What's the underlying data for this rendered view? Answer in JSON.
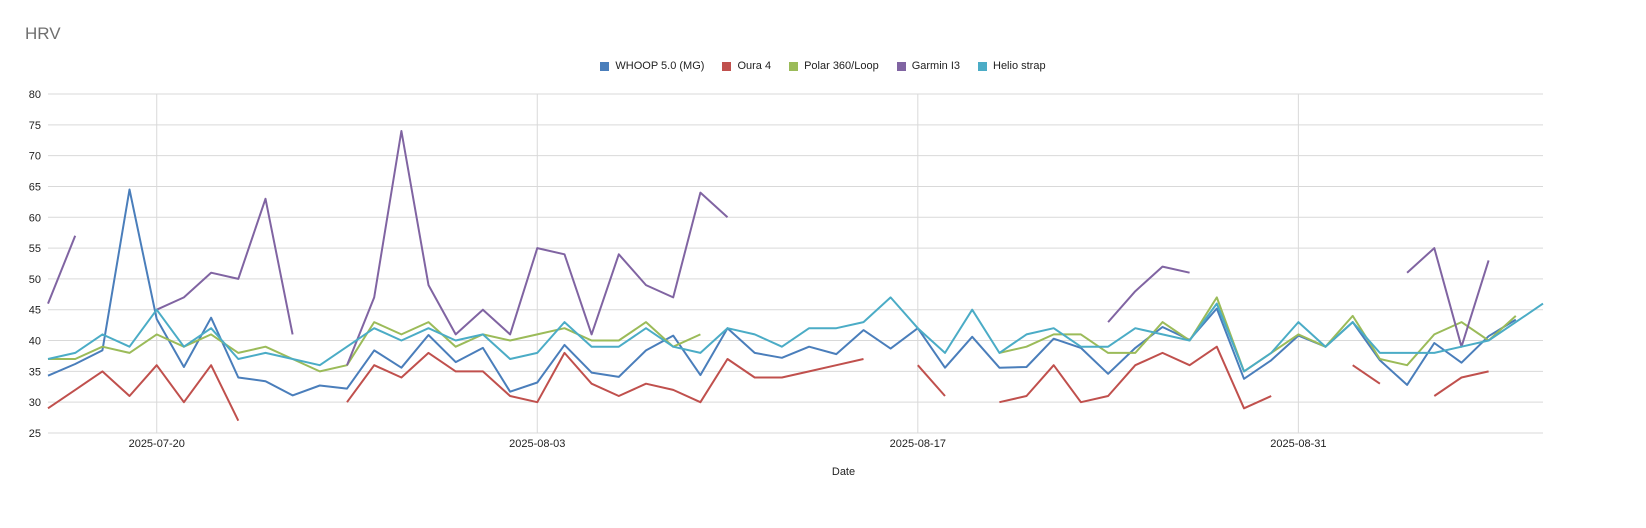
{
  "chart_data": {
    "type": "line",
    "title": "HRV",
    "xlabel": "Date",
    "ylabel": "",
    "ylim": [
      25,
      80
    ],
    "yticks": [
      25,
      30,
      35,
      40,
      45,
      50,
      55,
      60,
      65,
      70,
      75,
      80
    ],
    "x_start": "2025-07-16",
    "x_end": "2025-09-09",
    "xticks": [
      "2025-07-20",
      "2025-08-03",
      "2025-08-17",
      "2025-08-31"
    ],
    "x_gridlines": true,
    "y_gridlines": true,
    "legend_position": "top",
    "x": [
      "2025-07-16",
      "2025-07-17",
      "2025-07-18",
      "2025-07-19",
      "2025-07-20",
      "2025-07-21",
      "2025-07-22",
      "2025-07-23",
      "2025-07-24",
      "2025-07-25",
      "2025-07-26",
      "2025-07-27",
      "2025-07-28",
      "2025-07-29",
      "2025-07-30",
      "2025-07-31",
      "2025-08-01",
      "2025-08-02",
      "2025-08-03",
      "2025-08-04",
      "2025-08-05",
      "2025-08-06",
      "2025-08-07",
      "2025-08-08",
      "2025-08-09",
      "2025-08-10",
      "2025-08-11",
      "2025-08-12",
      "2025-08-13",
      "2025-08-14",
      "2025-08-15",
      "2025-08-16",
      "2025-08-17",
      "2025-08-18",
      "2025-08-19",
      "2025-08-20",
      "2025-08-21",
      "2025-08-22",
      "2025-08-23",
      "2025-08-24",
      "2025-08-25",
      "2025-08-26",
      "2025-08-27",
      "2025-08-28",
      "2025-08-29",
      "2025-08-30",
      "2025-08-31",
      "2025-09-01",
      "2025-09-02",
      "2025-09-03",
      "2025-09-04",
      "2025-09-05",
      "2025-09-06",
      "2025-09-07",
      "2025-09-08",
      "2025-09-09"
    ],
    "series": [
      {
        "name": "WHOOP 5.0 (MG)",
        "color": "#4a7ebb",
        "values": [
          34.3,
          36.2,
          38.4,
          64.5,
          43.5,
          35.7,
          43.7,
          34.0,
          33.4,
          31.1,
          32.7,
          32.2,
          38.4,
          35.6,
          40.9,
          36.5,
          38.8,
          31.7,
          33.2,
          39.3,
          34.8,
          34.1,
          38.4,
          40.8,
          34.4,
          42.0,
          38.0,
          37.2,
          39.0,
          37.8,
          41.7,
          38.7,
          42.0,
          35.6,
          40.6,
          35.6,
          35.7,
          40.3,
          38.8,
          34.6,
          38.8,
          42.2,
          40.1,
          45.2,
          33.8,
          36.8,
          40.8,
          39.0,
          43.0,
          36.8,
          32.8,
          39.6,
          36.4,
          40.7,
          43.4,
          null
        ]
      },
      {
        "name": "Oura 4",
        "color": "#c0504d",
        "values": [
          29,
          32,
          35,
          31,
          36,
          30,
          36,
          27,
          null,
          null,
          null,
          30,
          36,
          34,
          38,
          35,
          35,
          31,
          30,
          38,
          33,
          31,
          33,
          32,
          30,
          37,
          34,
          34,
          35,
          36,
          37,
          null,
          36,
          31,
          null,
          30,
          31,
          36,
          30,
          31,
          36,
          38,
          36,
          39,
          29,
          31,
          null,
          null,
          36,
          33,
          null,
          31,
          34,
          35,
          null,
          null
        ]
      },
      {
        "name": "Polar 360/Loop",
        "color": "#9bbb59",
        "values": [
          37,
          37,
          39,
          38,
          41,
          39,
          41,
          38,
          39,
          37,
          35,
          36,
          43,
          41,
          43,
          39,
          41,
          40,
          41,
          42,
          40,
          40,
          43,
          39,
          41,
          null,
          null,
          null,
          null,
          null,
          null,
          null,
          null,
          null,
          null,
          38,
          39,
          41,
          41,
          38,
          38,
          43,
          40,
          47,
          35,
          38,
          41,
          39,
          44,
          37,
          36,
          41,
          43,
          40,
          44,
          null
        ]
      },
      {
        "name": "Garmin I3",
        "color": "#8064a2",
        "values": [
          46,
          57,
          null,
          null,
          45,
          47,
          51,
          50,
          63,
          41,
          null,
          36,
          47,
          74,
          49,
          41,
          45,
          41,
          55,
          54,
          41,
          54,
          49,
          47,
          64,
          60,
          null,
          null,
          null,
          null,
          null,
          null,
          null,
          null,
          null,
          null,
          null,
          null,
          null,
          43,
          48,
          52,
          51,
          null,
          null,
          null,
          null,
          null,
          null,
          null,
          51,
          55,
          39,
          53,
          null,
          null
        ]
      },
      {
        "name": "Helio strap",
        "color": "#4bacc6",
        "values": [
          37,
          38,
          41,
          39,
          45,
          39,
          42,
          37,
          38,
          37,
          36,
          39,
          42,
          40,
          42,
          40,
          41,
          37,
          38,
          43,
          39,
          39,
          42,
          39,
          38,
          42,
          41,
          39,
          42,
          42,
          43,
          47,
          42,
          38,
          45,
          38,
          41,
          42,
          39,
          39,
          42,
          41,
          40,
          46,
          35,
          38,
          43,
          39,
          43,
          38,
          38,
          38,
          39,
          40,
          43,
          46
        ]
      }
    ]
  }
}
